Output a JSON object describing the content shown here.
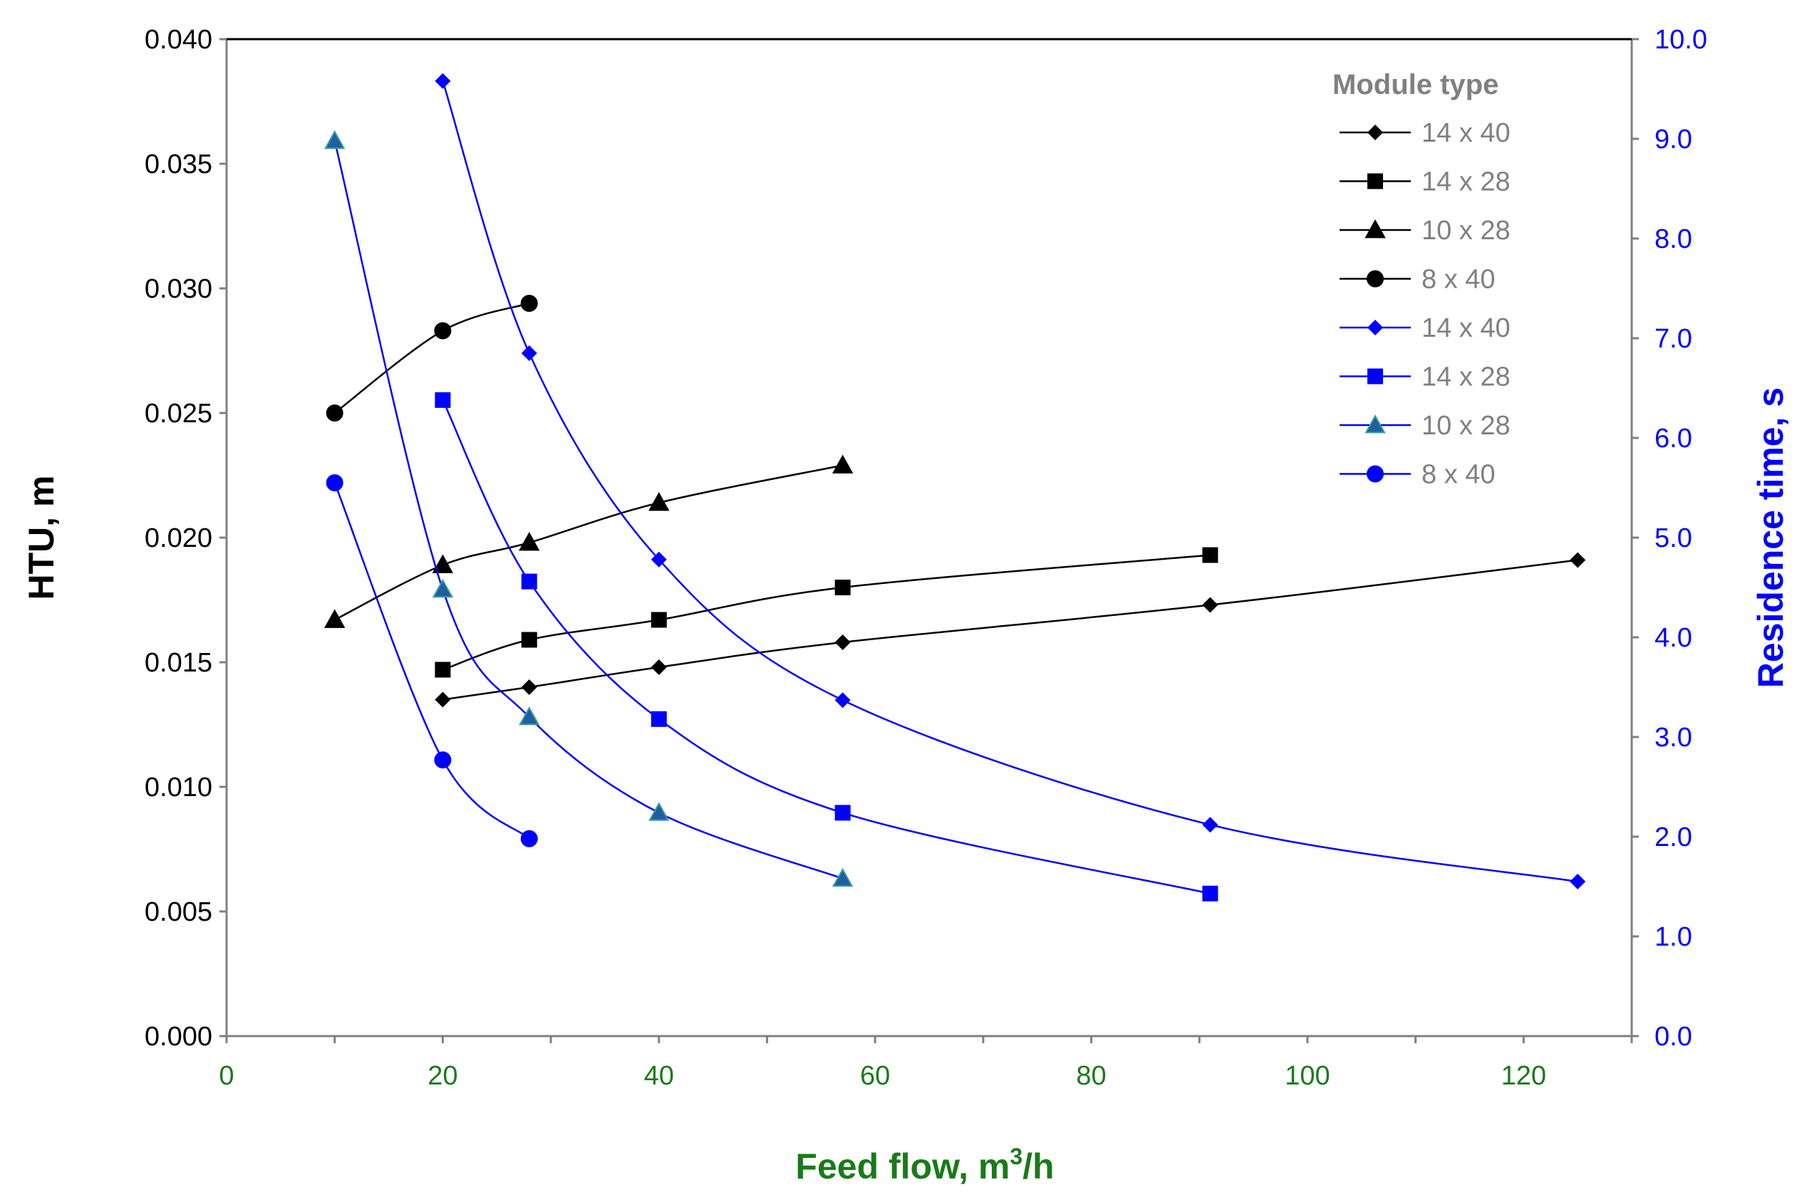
{
  "chart_data": {
    "type": "line",
    "title": "",
    "xlabel": "Feed flow, m",
    "xlabel_sup": "3",
    "xlabel_suffix": "/h",
    "ylabel_left": "HTU, m",
    "ylabel_right": "Residence time, s",
    "xlim": [
      0,
      130
    ],
    "ylim_left": [
      0,
      0.04
    ],
    "ylim_right": [
      0,
      10
    ],
    "x_ticks": [
      "0",
      "20",
      "40",
      "60",
      "80",
      "100",
      "120"
    ],
    "y_left_ticks": [
      "0.000",
      "0.005",
      "0.010",
      "0.015",
      "0.020",
      "0.025",
      "0.030",
      "0.035",
      "0.040"
    ],
    "y_right_ticks": [
      "0.0",
      "1.0",
      "2.0",
      "3.0",
      "4.0",
      "5.0",
      "6.0",
      "7.0",
      "8.0",
      "9.0",
      "10.0"
    ],
    "legend_title": "Module type",
    "legend_position": "top-right",
    "colors": {
      "htu": "#000000",
      "residence": "#0000ff",
      "triangle_fill": "#1f5fa0",
      "x_axis": "#1a7a1a",
      "right_axis": "#0000ff",
      "frame": "#808080"
    },
    "series": [
      {
        "name": "14 x 40",
        "axis": "left",
        "marker": "diamond",
        "color": "#000000",
        "x": [
          20,
          28,
          40,
          57,
          91,
          125
        ],
        "y": [
          0.0135,
          0.014,
          0.0148,
          0.0158,
          0.0173,
          0.0191
        ]
      },
      {
        "name": "14 x 28",
        "axis": "left",
        "marker": "square",
        "color": "#000000",
        "x": [
          20,
          28,
          40,
          57,
          91
        ],
        "y": [
          0.0147,
          0.0159,
          0.0167,
          0.018,
          0.0193
        ]
      },
      {
        "name": "10 x 28",
        "axis": "left",
        "marker": "triangle",
        "color": "#000000",
        "x": [
          10,
          20,
          28,
          40,
          57
        ],
        "y": [
          0.0167,
          0.0189,
          0.0198,
          0.0214,
          0.0229
        ]
      },
      {
        "name": "8 x 40",
        "axis": "left",
        "marker": "circle",
        "color": "#000000",
        "x": [
          10,
          20,
          28
        ],
        "y": [
          0.025,
          0.0283,
          0.0294
        ]
      },
      {
        "name": "14 x 40",
        "axis": "right",
        "marker": "diamond",
        "color": "#0000ff",
        "x": [
          20,
          28,
          40,
          57,
          91,
          125
        ],
        "y": [
          9.58,
          6.85,
          4.78,
          3.37,
          2.12,
          1.55
        ]
      },
      {
        "name": "14 x 28",
        "axis": "right",
        "marker": "square",
        "color": "#0000ff",
        "x": [
          20,
          28,
          40,
          57,
          91
        ],
        "y": [
          6.38,
          4.56,
          3.18,
          2.24,
          1.43
        ]
      },
      {
        "name": "10 x 28",
        "axis": "right",
        "marker": "triangle",
        "color": "#0000ff",
        "x": [
          10,
          20,
          28,
          40,
          57
        ],
        "y": [
          8.98,
          4.48,
          3.2,
          2.24,
          1.58
        ]
      },
      {
        "name": "8 x 40",
        "axis": "right",
        "marker": "circle",
        "color": "#0000ff",
        "x": [
          10,
          20,
          28
        ],
        "y": [
          5.55,
          2.77,
          1.98
        ]
      }
    ]
  }
}
